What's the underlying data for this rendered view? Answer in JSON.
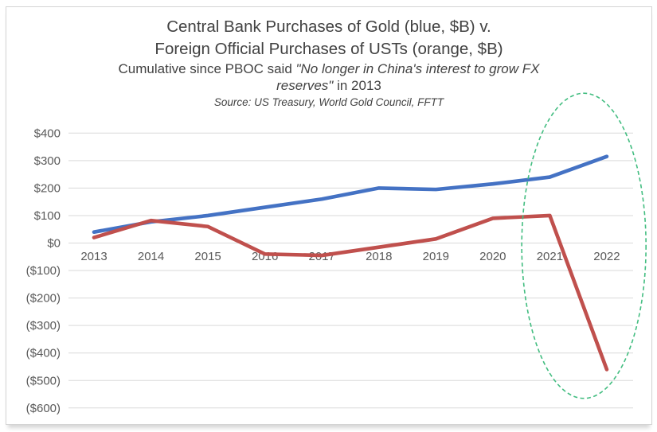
{
  "chart_data": {
    "type": "line",
    "title_lines": [
      "Central Bank Purchases of Gold (blue, $B) v.",
      "Foreign Official Purchases of USTs (orange, $B)"
    ],
    "subtitle": {
      "regular_prefix": "Cumulative since PBOC said ",
      "italic_quote_line1": "\"No longer in China's interest to grow FX",
      "italic_quote_line2": "reserves\"",
      "regular_suffix": " in 2013"
    },
    "source_note": "Source: US Treasury, World Gold Council, FFTT",
    "categories": [
      "2013",
      "2014",
      "2015",
      "2016",
      "2017",
      "2018",
      "2019",
      "2020",
      "2021",
      "2022"
    ],
    "series": [
      {
        "id": "gold-series",
        "name": "Central Bank Purchases of Gold (blue, $B)",
        "color": "#4472C4",
        "values": [
          40,
          77,
          100,
          130,
          160,
          200,
          195,
          215,
          240,
          315
        ]
      },
      {
        "id": "ust-series",
        "name": "Foreign Official Purchases of USTs (orange, $B)",
        "color": "#C0504D",
        "values": [
          20,
          82,
          60,
          -40,
          -45,
          -15,
          15,
          90,
          100,
          -460
        ]
      }
    ],
    "xlabel": "",
    "ylabel": "",
    "ylim": [
      -600,
      400
    ],
    "ytick_step": 100,
    "ytick_labels": [
      "$400",
      "$300",
      "$200",
      "$100",
      "$0",
      "($100)",
      "($200)",
      "($300)",
      "($400)",
      "($500)",
      "($600)"
    ],
    "grid": true,
    "gridline_color": "#d9d9d9",
    "axis_label_color": "#595959",
    "legend": "none",
    "annotation": {
      "shape": "dashed-ellipse",
      "color": "#42bd80",
      "spans_categories": [
        "2021",
        "2022"
      ],
      "note": "highlights 2021-2022 divergence of gold purchases vs UST sales"
    }
  }
}
